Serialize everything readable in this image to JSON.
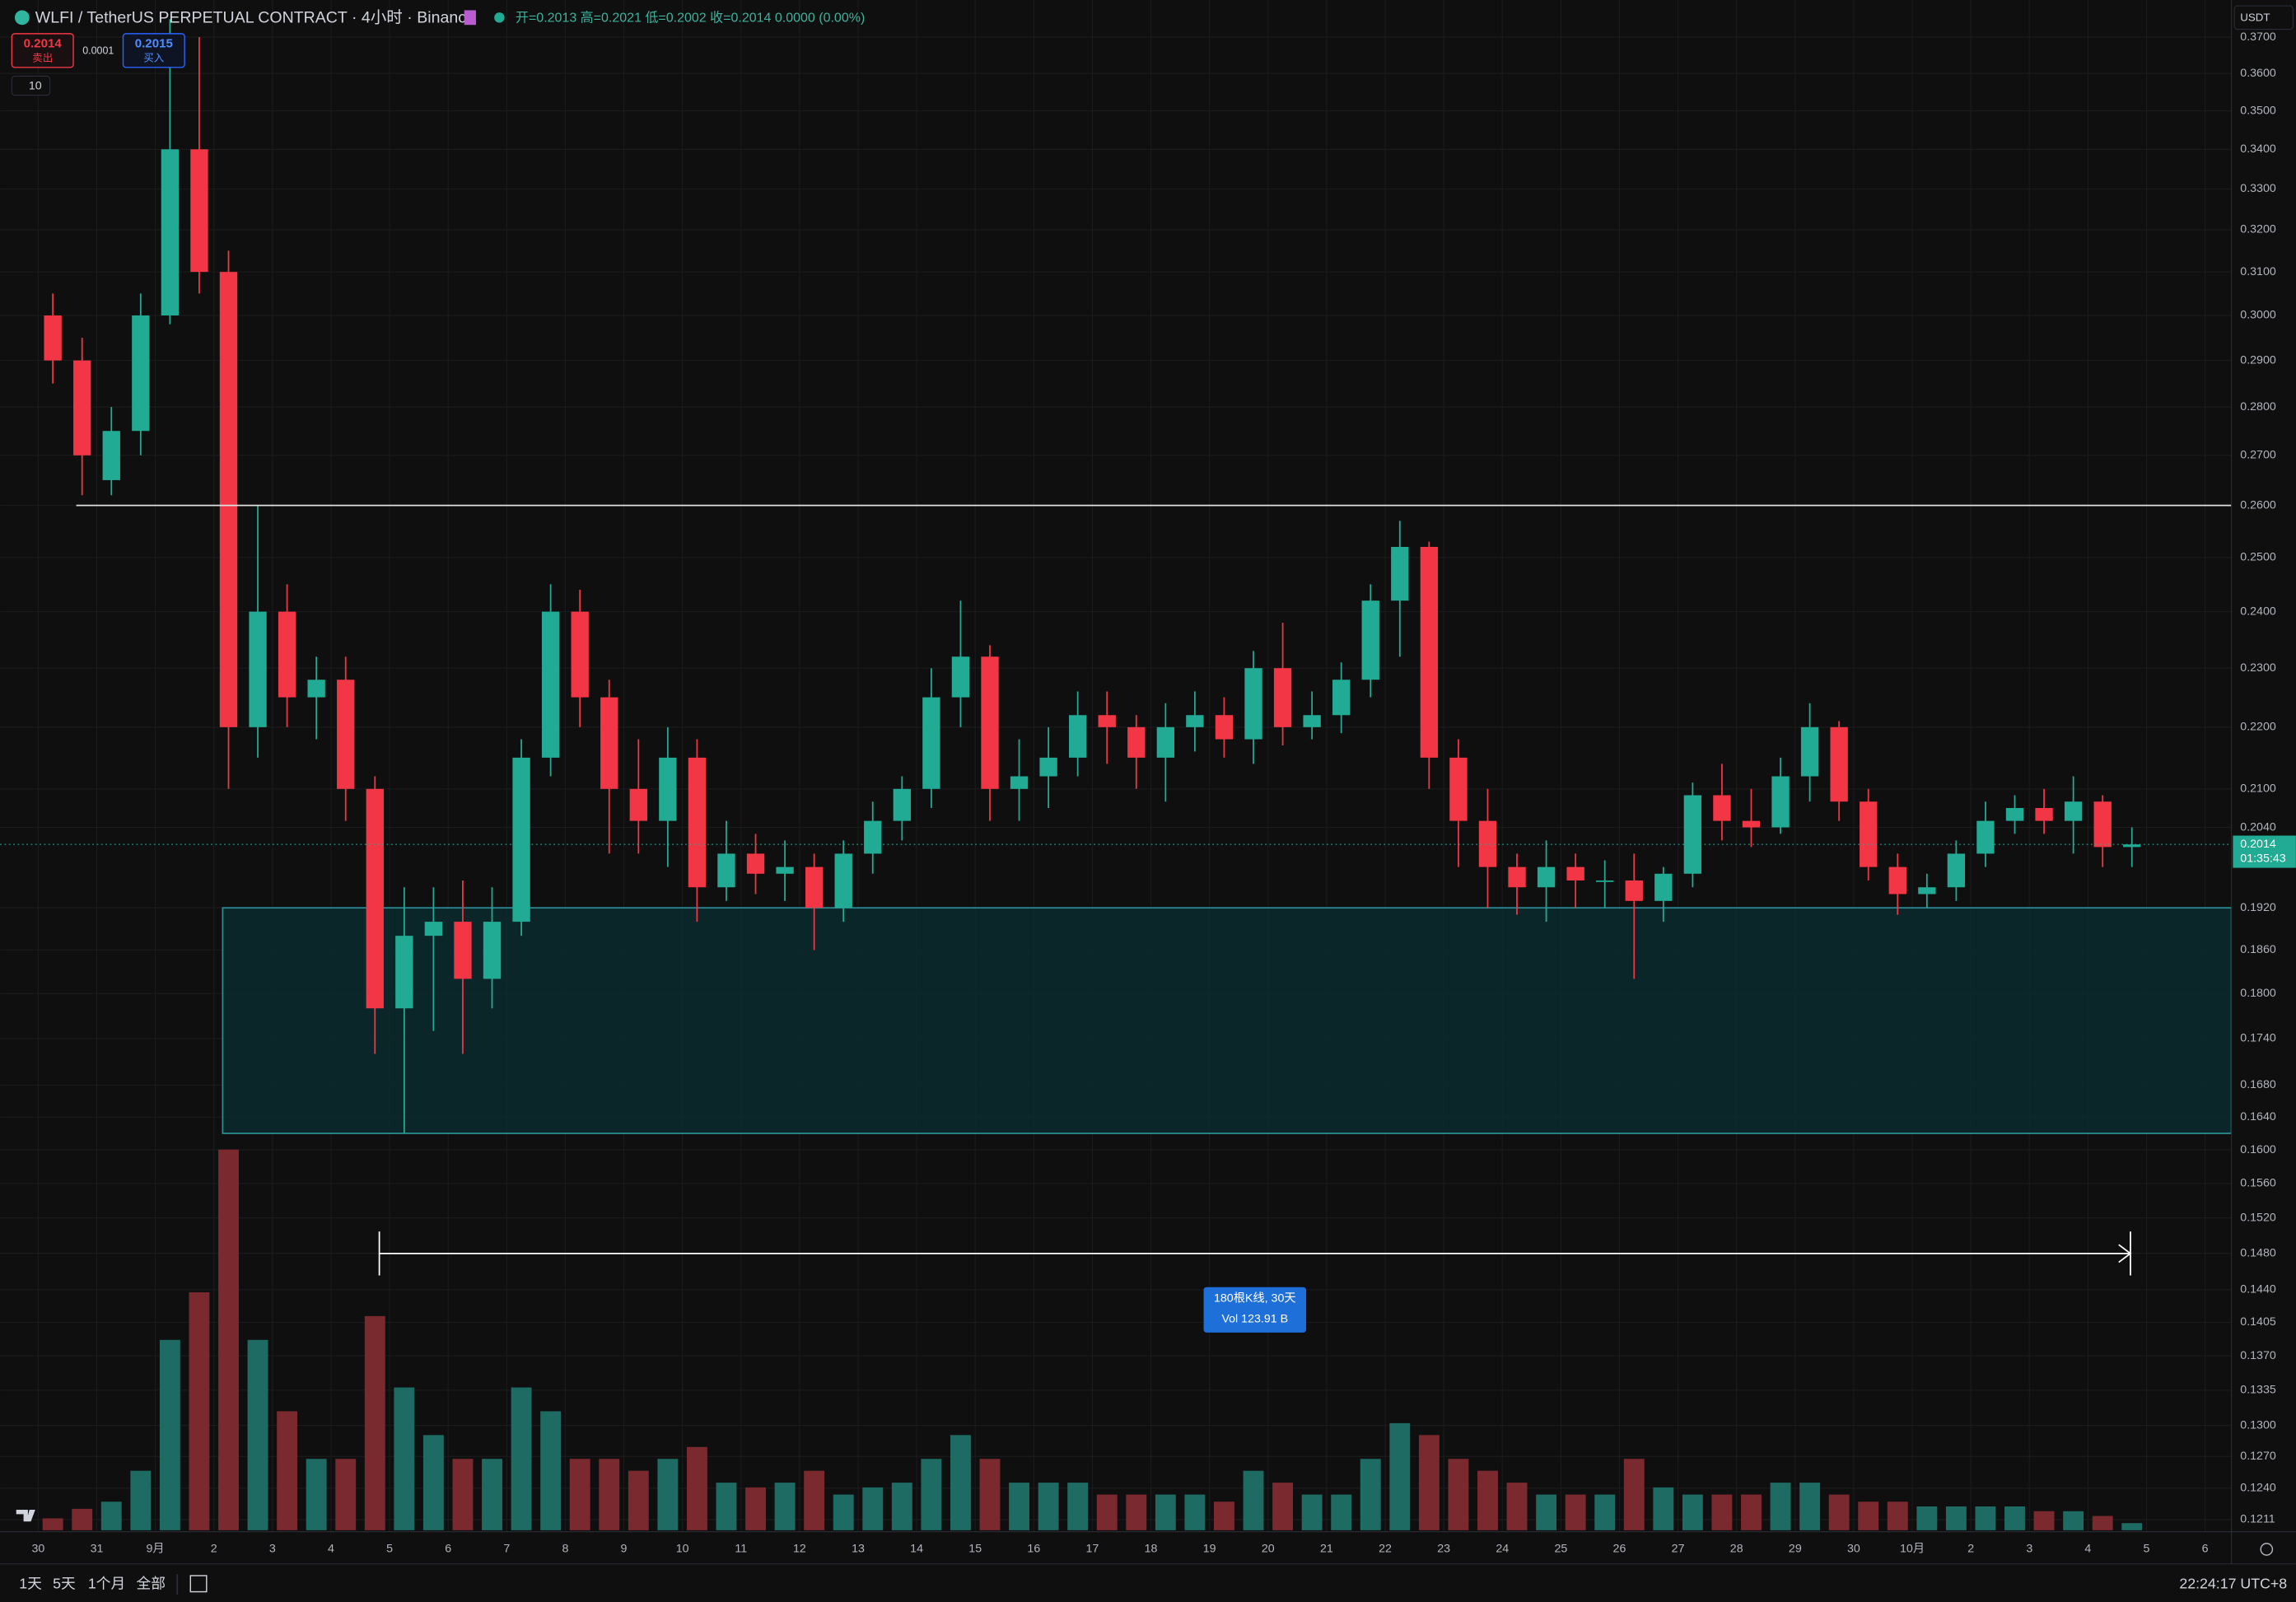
{
  "header": {
    "symbol": "WLFI / TetherUS PERPETUAL CONTRACT · 4小时 · Binance",
    "ohlc": "开=0.2013 高=0.2021 低=0.2002 收=0.2014 0.0000 (0.00%)",
    "sell_price": "0.2014",
    "sell_label": "卖出",
    "spread": "0.0001",
    "buy_price": "0.2015",
    "buy_label": "买入",
    "indicator_count": "10",
    "currency": "USDT"
  },
  "chart_data": {
    "type": "candlestick",
    "log_scale": true,
    "grid": true,
    "up_color": "#22ab94",
    "down_color": "#f23645",
    "up_volume_color": "#1d6b63",
    "down_volume_color": "#7a2a2f",
    "categories": [
      "30",
      null,
      "31",
      null,
      "9月",
      null,
      "2",
      null,
      "3",
      null,
      "4",
      null,
      "5",
      null,
      "6",
      null,
      "7",
      null,
      "8",
      null,
      "9",
      null,
      "10",
      null,
      "11",
      null,
      "12",
      null,
      "13",
      null,
      "14",
      null,
      "15",
      null,
      "16",
      null,
      "17",
      null,
      "18",
      null,
      "19",
      null,
      "20",
      null,
      "21",
      null,
      "22",
      null,
      "23",
      null,
      "24",
      null,
      "25",
      null,
      "26",
      null,
      "27",
      null,
      "28",
      null,
      "29",
      null,
      "30",
      null,
      "10月",
      null,
      "2",
      null,
      "3",
      null,
      "4",
      null,
      "5",
      null,
      "6",
      null
    ],
    "open": [
      0.3,
      0.29,
      0.265,
      0.275,
      0.3,
      0.34,
      0.31,
      0.22,
      0.24,
      0.225,
      0.228,
      0.21,
      0.178,
      0.188,
      0.19,
      0.182,
      0.19,
      0.215,
      0.24,
      0.225,
      0.21,
      0.205,
      0.215,
      0.195,
      0.2,
      0.197,
      0.198,
      0.192,
      0.2,
      0.205,
      0.21,
      0.225,
      0.232,
      0.21,
      0.212,
      0.215,
      0.222,
      0.22,
      0.215,
      0.22,
      0.222,
      0.218,
      0.23,
      0.22,
      0.222,
      0.228,
      0.242,
      0.252,
      0.215,
      0.205,
      0.198,
      0.195,
      0.198,
      0.196,
      0.196,
      0.193,
      0.197,
      0.209,
      0.205,
      0.204,
      0.212,
      0.22,
      0.208,
      0.198,
      0.194,
      0.195,
      0.2,
      0.205,
      0.207,
      0.205,
      0.208,
      0.201,
      null,
      null,
      null,
      null
    ],
    "high": [
      0.305,
      0.295,
      0.28,
      0.305,
      0.375,
      0.37,
      0.315,
      0.26,
      0.245,
      0.232,
      0.232,
      0.212,
      0.195,
      0.195,
      0.196,
      0.195,
      0.218,
      0.245,
      0.244,
      0.228,
      0.218,
      0.22,
      0.218,
      0.205,
      0.203,
      0.202,
      0.2,
      0.202,
      0.208,
      0.212,
      0.23,
      0.242,
      0.234,
      0.218,
      0.22,
      0.226,
      0.226,
      0.222,
      0.224,
      0.226,
      0.225,
      0.233,
      0.238,
      0.226,
      0.231,
      0.245,
      0.257,
      0.253,
      0.218,
      0.21,
      0.2,
      0.202,
      0.2,
      0.199,
      0.2,
      0.198,
      0.211,
      0.214,
      0.21,
      0.215,
      0.224,
      0.221,
      0.21,
      0.2,
      0.197,
      0.202,
      0.208,
      0.209,
      0.21,
      0.212,
      0.209,
      0.204,
      null,
      null,
      null,
      null
    ],
    "low": [
      0.285,
      0.262,
      0.262,
      0.27,
      0.298,
      0.305,
      0.21,
      0.215,
      0.22,
      0.218,
      0.205,
      0.172,
      0.162,
      0.175,
      0.172,
      0.178,
      0.188,
      0.212,
      0.22,
      0.2,
      0.2,
      0.198,
      0.19,
      0.193,
      0.194,
      0.193,
      0.186,
      0.19,
      0.197,
      0.202,
      0.207,
      0.22,
      0.205,
      0.205,
      0.207,
      0.212,
      0.214,
      0.21,
      0.208,
      0.216,
      0.215,
      0.214,
      0.217,
      0.218,
      0.219,
      0.225,
      0.232,
      0.21,
      0.198,
      0.192,
      0.191,
      0.19,
      0.192,
      0.192,
      0.182,
      0.19,
      0.195,
      0.202,
      0.201,
      0.203,
      0.208,
      0.205,
      0.196,
      0.191,
      0.192,
      0.193,
      0.198,
      0.203,
      0.203,
      0.2,
      0.198,
      0.198,
      null,
      null,
      null,
      null
    ],
    "close": [
      0.29,
      0.27,
      0.275,
      0.3,
      0.34,
      0.31,
      0.22,
      0.24,
      0.225,
      0.228,
      0.21,
      0.178,
      0.188,
      0.19,
      0.182,
      0.19,
      0.215,
      0.24,
      0.225,
      0.21,
      0.205,
      0.215,
      0.195,
      0.2,
      0.197,
      0.198,
      0.192,
      0.2,
      0.205,
      0.21,
      0.225,
      0.232,
      0.21,
      0.212,
      0.215,
      0.222,
      0.22,
      0.215,
      0.22,
      0.222,
      0.218,
      0.23,
      0.22,
      0.222,
      0.228,
      0.242,
      0.252,
      0.215,
      0.205,
      0.198,
      0.195,
      0.198,
      0.196,
      0.196,
      0.193,
      0.197,
      0.209,
      0.205,
      0.204,
      0.212,
      0.22,
      0.208,
      0.198,
      0.194,
      0.195,
      0.2,
      0.205,
      0.207,
      0.205,
      0.208,
      0.201,
      0.2014,
      null,
      null,
      null,
      null
    ],
    "volume": [
      0.5,
      0.9,
      1.2,
      2.5,
      8,
      10,
      16,
      8,
      5,
      3,
      3,
      9,
      6,
      4,
      3,
      3,
      6,
      5,
      3,
      3,
      2.5,
      3,
      3.5,
      2,
      1.8,
      2,
      2.5,
      1.5,
      1.8,
      2,
      3,
      4,
      3,
      2,
      2,
      2,
      1.5,
      1.5,
      1.5,
      1.5,
      1.2,
      2.5,
      2,
      1.5,
      1.5,
      3,
      4.5,
      4,
      3,
      2.5,
      2,
      1.5,
      1.5,
      1.5,
      3,
      1.8,
      1.5,
      1.5,
      1.5,
      2,
      2,
      1.5,
      1.2,
      1.2,
      1,
      1,
      1,
      1,
      0.8,
      0.8,
      0.6,
      0.3,
      null,
      null,
      null,
      null
    ],
    "ylim": [
      0.12,
      0.373
    ],
    "yticks": [
      {
        "value": 0.37,
        "label": "0.3700"
      },
      {
        "value": 0.36,
        "label": "0.3600"
      },
      {
        "value": 0.35,
        "label": "0.3500"
      },
      {
        "value": 0.34,
        "label": "0.3400"
      },
      {
        "value": 0.33,
        "label": "0.3300"
      },
      {
        "value": 0.32,
        "label": "0.3200"
      },
      {
        "value": 0.31,
        "label": "0.3100"
      },
      {
        "value": 0.3,
        "label": "0.3000"
      },
      {
        "value": 0.29,
        "label": "0.2900"
      },
      {
        "value": 0.28,
        "label": "0.2800"
      },
      {
        "value": 0.27,
        "label": "0.2700"
      },
      {
        "value": 0.26,
        "label": "0.2600"
      },
      {
        "value": 0.25,
        "label": "0.2500"
      },
      {
        "value": 0.24,
        "label": "0.2400"
      },
      {
        "value": 0.23,
        "label": "0.2300"
      },
      {
        "value": 0.22,
        "label": "0.2200"
      },
      {
        "value": 0.21,
        "label": "0.2100"
      },
      {
        "value": 0.204,
        "label": "0.2040"
      },
      {
        "value": 0.192,
        "label": "0.1920"
      },
      {
        "value": 0.186,
        "label": "0.1860"
      },
      {
        "value": 0.18,
        "label": "0.1800"
      },
      {
        "value": 0.174,
        "label": "0.1740"
      },
      {
        "value": 0.168,
        "label": "0.1680"
      },
      {
        "value": 0.164,
        "label": "0.1640"
      },
      {
        "value": 0.16,
        "label": "0.1600"
      },
      {
        "value": 0.156,
        "label": "0.1560"
      },
      {
        "value": 0.152,
        "label": "0.1520"
      },
      {
        "value": 0.148,
        "label": "0.1480"
      },
      {
        "value": 0.144,
        "label": "0.1440"
      },
      {
        "value": 0.1405,
        "label": "0.1405"
      },
      {
        "value": 0.137,
        "label": "0.1370"
      },
      {
        "value": 0.1335,
        "label": "0.1335"
      },
      {
        "value": 0.13,
        "label": "0.1300"
      },
      {
        "value": 0.127,
        "label": "0.1270"
      },
      {
        "value": 0.124,
        "label": "0.1240"
      },
      {
        "value": 0.1211,
        "label": "0.1211"
      }
    ],
    "hline": 0.26,
    "zone": [
      0.192,
      0.162
    ],
    "measure": {
      "bars": "180根K线, 30天",
      "vol": "Vol 123.91 B"
    },
    "price_tag": {
      "price": "0.2014",
      "countdown": "01:35:43"
    }
  },
  "footer": {
    "ranges": [
      "1天",
      "5天",
      "1个月",
      "全部"
    ],
    "clock": "22:24:17 UTC+8"
  }
}
